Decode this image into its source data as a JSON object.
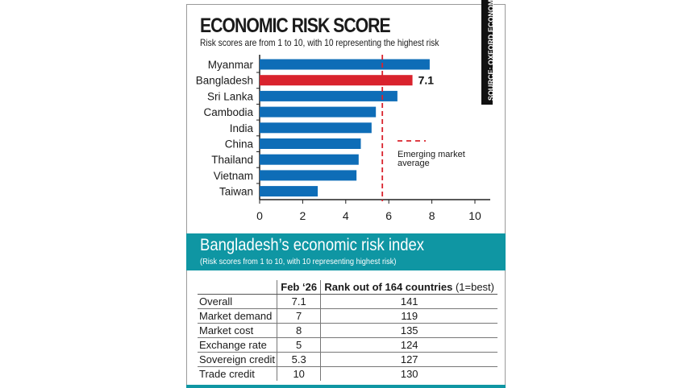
{
  "chart_data": {
    "type": "bar",
    "orientation": "horizontal",
    "title": "ECONOMIC RISK SCORE",
    "subtitle": "Risk scores are from 1 to 10, with 10 representing the highest risk",
    "categories": [
      "Myanmar",
      "Bangladesh",
      "Sri Lanka",
      "Cambodia",
      "India",
      "China",
      "Thailand",
      "Vietnam",
      "Taiwan"
    ],
    "values": [
      7.9,
      7.1,
      6.4,
      5.4,
      5.2,
      4.7,
      4.6,
      4.5,
      2.7
    ],
    "highlight": {
      "category": "Bangladesh",
      "label": "7.1",
      "color": "#d9232d"
    },
    "bar_color": "#0e6db7",
    "xlim": [
      0,
      10
    ],
    "xticks": [
      "0",
      "2",
      "4",
      "6",
      "8",
      "10"
    ],
    "reference_line": {
      "value": 5.7,
      "label": "Emerging market average",
      "label_lines": [
        "Emerging market",
        "average"
      ],
      "color": "#d9232d",
      "style": "dashed"
    },
    "source": "SOURCE: OXFORD ECONOMICS"
  },
  "index": {
    "title": "Bangladesh’s economic risk index",
    "subtitle": "(Risk scores from 1 to 10, with 10 representing highest risk)",
    "accent": "#0f96a3",
    "columns": [
      "",
      "Feb ‘26",
      "Rank out of 164 countries",
      "(1=best)"
    ],
    "rows": [
      [
        "Overall",
        "7.1",
        "141"
      ],
      [
        "Market demand",
        "7",
        "119"
      ],
      [
        "Market cost",
        "8",
        "135"
      ],
      [
        "Exchange rate",
        "5",
        "124"
      ],
      [
        "Sovereign credit",
        "5.3",
        "127"
      ],
      [
        "Trade credit",
        "10",
        "130"
      ]
    ]
  }
}
